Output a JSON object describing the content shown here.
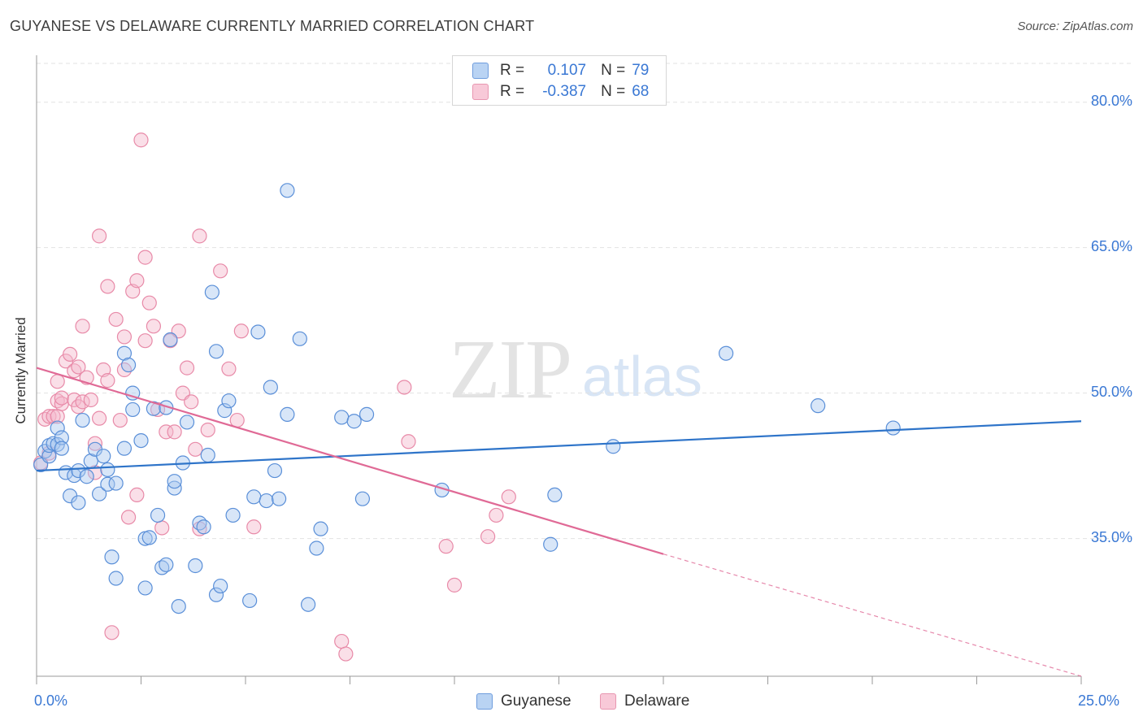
{
  "header": {
    "title": "GUYANESE VS DELAWARE CURRENTLY MARRIED CORRELATION CHART",
    "source": "Source: ZipAtlas.com"
  },
  "watermark": {
    "zip": "ZIP",
    "atlas": "atlas"
  },
  "colors": {
    "blue_fill": "#a8c8f0",
    "blue_stroke": "#5a8fd8",
    "blue_line": "#2e74c9",
    "pink_fill": "#f5b8cb",
    "pink_stroke": "#e88aa8",
    "pink_line": "#e06a96",
    "grid": "#e2e2e2",
    "axis": "#9a9a9a",
    "tick_text": "#3a78d4"
  },
  "legend": {
    "rows": [
      {
        "r_label": "R =",
        "r_value": "0.107",
        "n_label": "N =",
        "n_value": "79"
      },
      {
        "r_label": "R =",
        "r_value": "-0.387",
        "n_label": "N =",
        "n_value": "68"
      }
    ]
  },
  "chart_data": {
    "type": "scatter",
    "title": "GUYANESE VS DELAWARE CURRENTLY MARRIED CORRELATION CHART",
    "xlabel": "",
    "ylabel": "Currently Married",
    "xlim": [
      0,
      25
    ],
    "ylim": [
      20.8,
      84
    ],
    "x_tick_labels": [
      "0.0%",
      "25.0%"
    ],
    "y_ticks": [
      35,
      50,
      65,
      80
    ],
    "y_tick_labels": [
      "35.0%",
      "50.0%",
      "65.0%",
      "80.0%"
    ],
    "grid": true,
    "legend_position": "bottom",
    "series": [
      {
        "name": "Guyanese",
        "color": "#a8c8f0",
        "r": 0.107,
        "n": 79,
        "trendline": {
          "x": [
            0,
            25
          ],
          "y": [
            42.0,
            47.1
          ]
        },
        "points": [
          [
            0.1,
            42.6
          ],
          [
            0.2,
            44.0
          ],
          [
            0.3,
            43.5
          ],
          [
            0.3,
            44.6
          ],
          [
            0.4,
            44.8
          ],
          [
            0.5,
            44.7
          ],
          [
            0.5,
            46.4
          ],
          [
            0.6,
            45.4
          ],
          [
            0.6,
            44.3
          ],
          [
            0.7,
            41.8
          ],
          [
            0.8,
            39.4
          ],
          [
            0.9,
            41.5
          ],
          [
            1.0,
            42.0
          ],
          [
            1.0,
            38.7
          ],
          [
            1.1,
            47.2
          ],
          [
            1.2,
            41.4
          ],
          [
            1.3,
            43.0
          ],
          [
            1.4,
            44.2
          ],
          [
            1.5,
            39.6
          ],
          [
            1.6,
            43.5
          ],
          [
            1.7,
            40.6
          ],
          [
            1.7,
            42.1
          ],
          [
            1.8,
            33.1
          ],
          [
            1.9,
            40.7
          ],
          [
            1.9,
            30.9
          ],
          [
            2.1,
            54.1
          ],
          [
            2.1,
            44.3
          ],
          [
            2.2,
            52.9
          ],
          [
            2.3,
            50.0
          ],
          [
            2.3,
            48.3
          ],
          [
            2.5,
            45.1
          ],
          [
            2.6,
            35.0
          ],
          [
            2.6,
            29.9
          ],
          [
            2.7,
            35.1
          ],
          [
            2.8,
            48.4
          ],
          [
            2.9,
            37.4
          ],
          [
            3.0,
            32.0
          ],
          [
            3.1,
            48.5
          ],
          [
            3.1,
            32.3
          ],
          [
            3.2,
            55.5
          ],
          [
            3.3,
            40.2
          ],
          [
            3.3,
            40.9
          ],
          [
            3.4,
            28.0
          ],
          [
            3.5,
            42.8
          ],
          [
            3.6,
            47.0
          ],
          [
            3.8,
            32.2
          ],
          [
            3.9,
            36.6
          ],
          [
            4.0,
            36.2
          ],
          [
            4.1,
            43.6
          ],
          [
            4.2,
            60.4
          ],
          [
            4.3,
            29.2
          ],
          [
            4.3,
            54.3
          ],
          [
            4.4,
            30.1
          ],
          [
            4.5,
            48.2
          ],
          [
            4.6,
            49.2
          ],
          [
            4.7,
            37.4
          ],
          [
            5.1,
            28.6
          ],
          [
            5.2,
            39.3
          ],
          [
            5.3,
            56.3
          ],
          [
            5.5,
            38.9
          ],
          [
            5.6,
            50.6
          ],
          [
            5.7,
            42.0
          ],
          [
            5.8,
            39.1
          ],
          [
            6.0,
            47.8
          ],
          [
            6.0,
            70.9
          ],
          [
            6.3,
            55.6
          ],
          [
            6.5,
            28.2
          ],
          [
            6.7,
            34.0
          ],
          [
            6.8,
            36.0
          ],
          [
            7.3,
            47.5
          ],
          [
            7.6,
            47.1
          ],
          [
            7.8,
            39.1
          ],
          [
            7.9,
            47.8
          ],
          [
            9.7,
            40.0
          ],
          [
            12.3,
            34.4
          ],
          [
            12.4,
            39.5
          ],
          [
            13.8,
            44.5
          ],
          [
            16.5,
            54.1
          ],
          [
            18.7,
            48.7
          ],
          [
            20.5,
            46.4
          ]
        ]
      },
      {
        "name": "Delaware",
        "color": "#f5b8cb",
        "r": -0.387,
        "n": 68,
        "trendline": {
          "x": [
            0,
            15
          ],
          "y": [
            52.6,
            33.4
          ]
        },
        "trendline_dashed": {
          "x": [
            15,
            25
          ],
          "y": [
            33.4,
            20.8
          ]
        },
        "points": [
          [
            0.1,
            42.8
          ],
          [
            0.2,
            47.3
          ],
          [
            0.3,
            47.6
          ],
          [
            0.3,
            43.8
          ],
          [
            0.4,
            47.6
          ],
          [
            0.5,
            47.6
          ],
          [
            0.5,
            49.2
          ],
          [
            0.5,
            51.2
          ],
          [
            0.6,
            48.9
          ],
          [
            0.6,
            49.5
          ],
          [
            0.7,
            53.3
          ],
          [
            0.8,
            54.0
          ],
          [
            0.9,
            49.3
          ],
          [
            0.9,
            52.3
          ],
          [
            1.0,
            52.7
          ],
          [
            1.0,
            48.6
          ],
          [
            1.1,
            49.1
          ],
          [
            1.1,
            56.9
          ],
          [
            1.2,
            51.6
          ],
          [
            1.3,
            49.3
          ],
          [
            1.4,
            44.8
          ],
          [
            1.5,
            47.4
          ],
          [
            1.5,
            66.2
          ],
          [
            1.6,
            52.4
          ],
          [
            1.7,
            51.3
          ],
          [
            1.7,
            61.0
          ],
          [
            1.8,
            25.3
          ],
          [
            1.9,
            57.6
          ],
          [
            2.0,
            47.2
          ],
          [
            2.1,
            55.8
          ],
          [
            2.1,
            52.4
          ],
          [
            2.2,
            37.2
          ],
          [
            2.3,
            60.5
          ],
          [
            2.4,
            61.6
          ],
          [
            2.4,
            39.5
          ],
          [
            2.5,
            76.1
          ],
          [
            2.6,
            55.4
          ],
          [
            2.6,
            64.0
          ],
          [
            2.7,
            59.3
          ],
          [
            2.8,
            56.9
          ],
          [
            2.9,
            48.3
          ],
          [
            3.1,
            46.0
          ],
          [
            3.2,
            55.4
          ],
          [
            3.3,
            46.0
          ],
          [
            3.4,
            56.4
          ],
          [
            3.5,
            50.0
          ],
          [
            3.6,
            52.6
          ],
          [
            3.7,
            49.1
          ],
          [
            3.8,
            44.2
          ],
          [
            3.9,
            36.0
          ],
          [
            3.9,
            66.2
          ],
          [
            4.1,
            46.2
          ],
          [
            4.4,
            62.6
          ],
          [
            4.6,
            52.5
          ],
          [
            4.8,
            47.2
          ],
          [
            4.9,
            56.4
          ],
          [
            5.2,
            36.2
          ],
          [
            7.3,
            24.4
          ],
          [
            7.4,
            23.1
          ],
          [
            8.8,
            50.6
          ],
          [
            8.9,
            45.0
          ],
          [
            9.8,
            34.2
          ],
          [
            10.0,
            30.2
          ],
          [
            10.8,
            35.2
          ],
          [
            11.0,
            37.4
          ],
          [
            11.3,
            39.3
          ],
          [
            1.4,
            41.8
          ],
          [
            3.0,
            36.1
          ]
        ]
      }
    ]
  }
}
